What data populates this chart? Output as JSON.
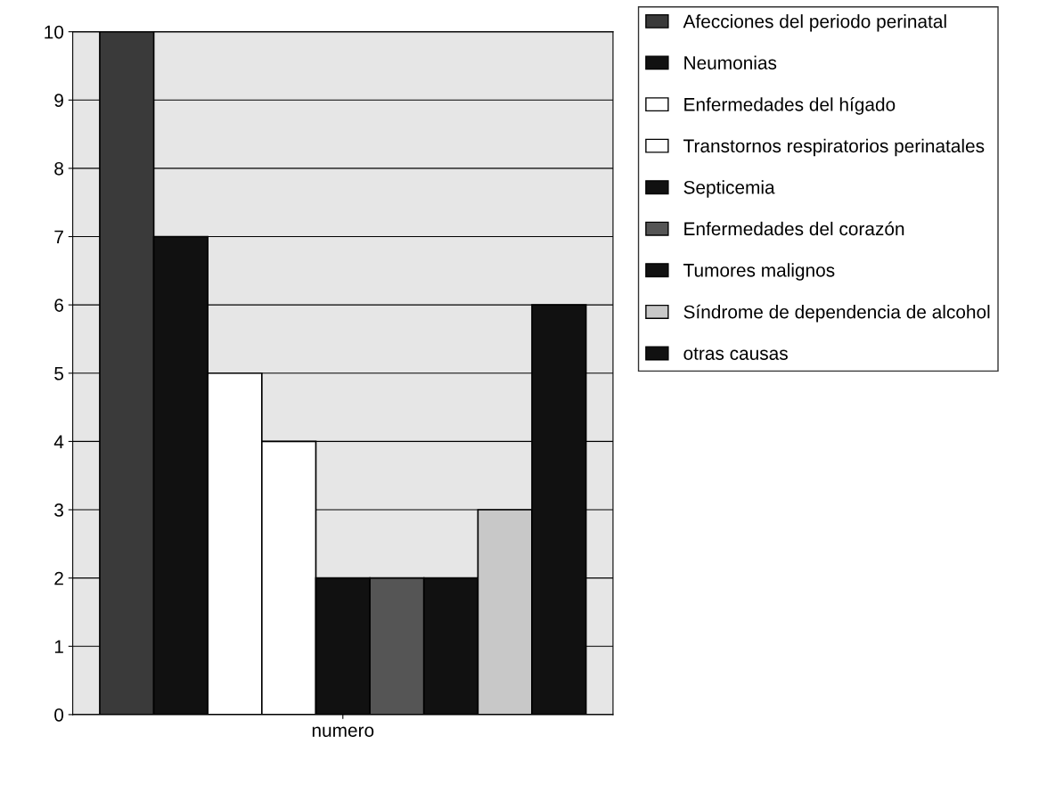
{
  "chart_data": {
    "type": "bar",
    "categories": [
      "numero"
    ],
    "series": [
      {
        "name": "Afecciones del periodo perinatal",
        "color": "#3a3a3a",
        "values": [
          10
        ]
      },
      {
        "name": "Neumonias",
        "color": "#111111",
        "values": [
          7
        ]
      },
      {
        "name": "Enfermedades del hígado",
        "color": "#ffffff",
        "values": [
          5
        ]
      },
      {
        "name": "Transtornos respiratorios perinatales",
        "color": "#ffffff",
        "values": [
          4
        ]
      },
      {
        "name": "Septicemia",
        "color": "#111111",
        "values": [
          2
        ]
      },
      {
        "name": "Enfermedades del corazón",
        "color": "#555555",
        "values": [
          2
        ]
      },
      {
        "name": "Tumores malignos",
        "color": "#111111",
        "values": [
          2
        ]
      },
      {
        "name": "Síndrome de dependencia de alcohol",
        "color": "#c8c8c8",
        "values": [
          3
        ]
      },
      {
        "name": "otras causas",
        "color": "#111111",
        "values": [
          6
        ]
      }
    ],
    "ylim": [
      0,
      10
    ],
    "yticks": [
      0,
      1,
      2,
      3,
      4,
      5,
      6,
      7,
      8,
      9,
      10
    ],
    "grid": "y",
    "legend": "right"
  }
}
